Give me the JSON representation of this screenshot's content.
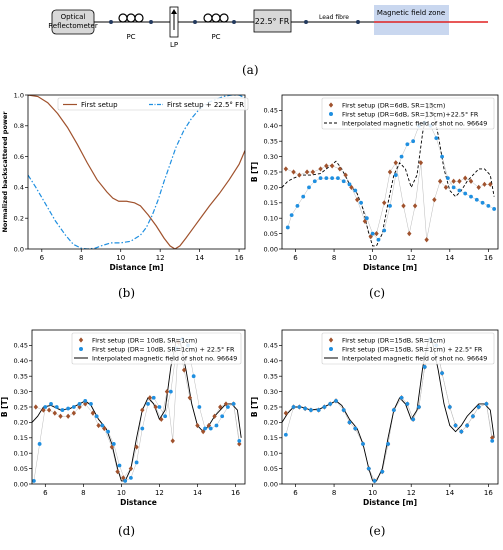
{
  "diagram": {
    "reflectometer": "Optical Reflectometer",
    "pc1": "PC",
    "lp": "LP",
    "pc2": "PC",
    "fr": "22.5° FR",
    "lead": "Lead fibre",
    "zone": "Magnetic field zone",
    "label": "(a)"
  },
  "colors": {
    "brown": "#a0522d",
    "blue": "#1f8fe0",
    "black": "#000000",
    "zone": "#c9d7ef"
  },
  "chart_data": [
    {
      "id": "b",
      "type": "line",
      "label": "(b)",
      "xlabel": "Distance [m]",
      "ylabel": "Normalized backscattered power",
      "xlim": [
        5.3,
        16.3
      ],
      "ylim": [
        0,
        1.0
      ],
      "xticks": [
        6,
        8,
        10,
        12,
        14,
        16
      ],
      "yticks": [
        0,
        0.2,
        0.4,
        0.6,
        0.8,
        1.0
      ],
      "ytick_labels": [
        "0.0",
        "0.2",
        "0.4",
        "0.6",
        "0.8",
        "1.0"
      ],
      "legend_position": "top",
      "series": [
        {
          "name": "First setup",
          "style": "solid",
          "color": "#a0522d",
          "x": [
            5.3,
            5.8,
            6.3,
            6.8,
            7.3,
            7.8,
            8.3,
            8.8,
            9.3,
            9.6,
            9.9,
            10.3,
            10.7,
            11.0,
            11.4,
            11.8,
            12.2,
            12.5,
            12.75,
            13.0,
            13.3,
            13.7,
            14.1,
            14.5,
            15.0,
            15.5,
            16.0,
            16.3
          ],
          "y": [
            1.0,
            0.99,
            0.95,
            0.88,
            0.79,
            0.68,
            0.56,
            0.45,
            0.37,
            0.33,
            0.31,
            0.31,
            0.3,
            0.28,
            0.22,
            0.15,
            0.07,
            0.02,
            0.0,
            0.02,
            0.07,
            0.14,
            0.21,
            0.28,
            0.36,
            0.45,
            0.55,
            0.64
          ]
        },
        {
          "name": "First setup + 22.5° FR",
          "style": "dashdot",
          "color": "#1f8fe0",
          "x": [
            5.3,
            5.7,
            6.2,
            6.7,
            7.2,
            7.6,
            8.0,
            8.3,
            8.7,
            9.0,
            9.5,
            10.0,
            10.5,
            11.0,
            11.3,
            11.6,
            11.9,
            12.2,
            12.5,
            12.8,
            13.2,
            13.6,
            14.0,
            14.4,
            14.8,
            15.2,
            15.6,
            16.0,
            16.3
          ],
          "y": [
            0.48,
            0.4,
            0.29,
            0.18,
            0.09,
            0.03,
            0.005,
            0.0,
            0.005,
            0.02,
            0.04,
            0.04,
            0.05,
            0.09,
            0.14,
            0.22,
            0.32,
            0.44,
            0.55,
            0.66,
            0.77,
            0.85,
            0.91,
            0.95,
            0.97,
            0.99,
            1.0,
            1.0,
            0.98
          ]
        }
      ]
    },
    {
      "id": "c",
      "type": "scatter",
      "label": "(c)",
      "xlabel": "Distance [m]",
      "ylabel": "B [T]",
      "xlim": [
        5.3,
        16.5
      ],
      "ylim": [
        0,
        0.5
      ],
      "xticks": [
        6,
        8,
        10,
        12,
        14,
        16
      ],
      "yticks": [
        0,
        0.05,
        0.1,
        0.15,
        0.2,
        0.25,
        0.3,
        0.35,
        0.4,
        0.45
      ],
      "ytick_labels": [
        "0.00",
        "0.05",
        "0.10",
        "0.15",
        "0.20",
        "0.25",
        "0.30",
        "0.35",
        "0.40",
        "0.45"
      ],
      "legend_position": "top",
      "series": [
        {
          "name": "First setup (DR=6dB, SR=13cm)",
          "marker": "diamond",
          "color": "#a0522d",
          "x": [
            5.5,
            5.9,
            6.2,
            6.6,
            6.9,
            7.3,
            7.6,
            7.9,
            8.3,
            8.6,
            8.9,
            9.2,
            9.6,
            9.9,
            10.2,
            10.6,
            10.9,
            11.2,
            11.6,
            11.9,
            12.2,
            12.5,
            12.8,
            13.2,
            13.5,
            13.8,
            14.2,
            14.5,
            14.8,
            15.1,
            15.5,
            15.8,
            16.1
          ],
          "y": [
            0.26,
            0.25,
            0.24,
            0.25,
            0.25,
            0.26,
            0.27,
            0.27,
            0.26,
            0.24,
            0.2,
            0.16,
            0.09,
            0.04,
            0.05,
            0.15,
            0.25,
            0.28,
            0.14,
            0.05,
            0.14,
            0.28,
            0.03,
            0.16,
            0.22,
            0.2,
            0.22,
            0.22,
            0.23,
            0.22,
            0.2,
            0.21,
            0.21
          ]
        },
        {
          "name": "First setup (DR=6dB, SR=13cm)+22.5° FR",
          "marker": "circle",
          "color": "#1f8fe0",
          "x": [
            5.6,
            5.8,
            6.1,
            6.4,
            6.7,
            7.0,
            7.3,
            7.6,
            7.9,
            8.2,
            8.5,
            8.8,
            9.1,
            9.4,
            9.7,
            10.0,
            10.3,
            10.6,
            10.9,
            11.2,
            11.5,
            11.8,
            12.1,
            12.4,
            12.7,
            13.0,
            13.3,
            13.6,
            13.9,
            14.2,
            14.5,
            14.8,
            15.1,
            15.4,
            15.7,
            16.0,
            16.3
          ],
          "y": [
            0.07,
            0.11,
            0.14,
            0.17,
            0.2,
            0.22,
            0.23,
            0.23,
            0.23,
            0.23,
            0.22,
            0.21,
            0.19,
            0.15,
            0.1,
            0.05,
            0.03,
            0.06,
            0.14,
            0.24,
            0.3,
            0.34,
            0.35,
            0.4,
            0.41,
            0.4,
            0.36,
            0.3,
            0.23,
            0.2,
            0.19,
            0.18,
            0.17,
            0.16,
            0.15,
            0.14,
            0.13
          ]
        },
        {
          "name": "Interpolated magnetic field of shot no. 96649",
          "marker": "dashed-line",
          "color": "#000000",
          "x": [
            5.3,
            5.6,
            5.9,
            6.3,
            6.8,
            7.3,
            7.8,
            8.1,
            8.4,
            8.8,
            9.2,
            9.5,
            9.8,
            10.0,
            10.2,
            10.5,
            10.8,
            11.1,
            11.4,
            11.7,
            12.0,
            12.3,
            12.6,
            12.9,
            13.1,
            13.4,
            13.7,
            14.0,
            14.3,
            14.6,
            14.9,
            15.2,
            15.5,
            15.8,
            16.1,
            16.3
          ],
          "y": [
            0.2,
            0.22,
            0.23,
            0.24,
            0.24,
            0.245,
            0.27,
            0.285,
            0.26,
            0.21,
            0.18,
            0.13,
            0.05,
            0.01,
            0.01,
            0.05,
            0.15,
            0.24,
            0.28,
            0.26,
            0.2,
            0.24,
            0.38,
            0.47,
            0.46,
            0.37,
            0.26,
            0.19,
            0.17,
            0.19,
            0.22,
            0.24,
            0.26,
            0.26,
            0.24,
            0.17
          ]
        }
      ]
    },
    {
      "id": "d",
      "type": "scatter",
      "label": "(d)",
      "xlabel": "Distance",
      "ylabel": "B [T]",
      "xlim": [
        5.3,
        16.5
      ],
      "ylim": [
        0,
        0.5
      ],
      "xticks": [
        6,
        8,
        10,
        12,
        14,
        16
      ],
      "yticks": [
        0,
        0.05,
        0.1,
        0.15,
        0.2,
        0.25,
        0.3,
        0.35,
        0.4,
        0.45
      ],
      "ytick_labels": [
        "0.00",
        "0.05",
        "0.10",
        "0.15",
        "0.20",
        "0.25",
        "0.30",
        "0.35",
        "0.40",
        "0.45"
      ],
      "legend_position": "top",
      "series": [
        {
          "name": "First setup (DR= 10dB, SR=1cm)",
          "marker": "diamond",
          "color": "#a0522d",
          "x": [
            5.5,
            5.9,
            6.2,
            6.5,
            6.8,
            7.2,
            7.5,
            7.8,
            8.1,
            8.5,
            8.8,
            9.1,
            9.5,
            9.8,
            10.1,
            10.5,
            10.8,
            11.1,
            11.5,
            11.8,
            12.1,
            12.4,
            12.7,
            13.0,
            13.3,
            13.6,
            14.0,
            14.3,
            14.6,
            14.9,
            15.2,
            15.5,
            15.9,
            16.2
          ],
          "y": [
            0.25,
            0.24,
            0.24,
            0.23,
            0.22,
            0.22,
            0.23,
            0.25,
            0.26,
            0.23,
            0.19,
            0.18,
            0.12,
            0.04,
            0.02,
            0.05,
            0.12,
            0.24,
            0.28,
            0.25,
            0.21,
            0.3,
            0.14,
            0.46,
            0.37,
            0.28,
            0.19,
            0.17,
            0.19,
            0.22,
            0.25,
            0.26,
            0.26,
            0.13
          ]
        },
        {
          "name": "First setup (DR= 10dB, SR=1cm) + 22.5° FR",
          "marker": "circle",
          "color": "#1f8fe0",
          "x": [
            5.4,
            5.7,
            6.0,
            6.3,
            6.6,
            6.9,
            7.2,
            7.5,
            7.8,
            8.1,
            8.4,
            8.7,
            9.0,
            9.3,
            9.6,
            9.9,
            10.2,
            10.5,
            10.8,
            11.1,
            11.4,
            11.7,
            12.0,
            12.3,
            12.6,
            12.9,
            13.2,
            13.5,
            13.8,
            14.1,
            14.4,
            14.7,
            15.0,
            15.3,
            15.6,
            15.9,
            16.2
          ],
          "y": [
            0.01,
            0.13,
            0.25,
            0.26,
            0.25,
            0.24,
            0.245,
            0.25,
            0.26,
            0.27,
            0.26,
            0.22,
            0.19,
            0.17,
            0.13,
            0.06,
            0.01,
            0.02,
            0.07,
            0.18,
            0.26,
            0.28,
            0.25,
            0.22,
            0.3,
            0.44,
            0.47,
            0.45,
            0.35,
            0.25,
            0.18,
            0.18,
            0.19,
            0.22,
            0.25,
            0.26,
            0.14
          ]
        },
        {
          "name": "Interpolated magnetic field of shot no. 96649",
          "marker": "solid-line",
          "color": "#000000",
          "x": [
            5.3,
            5.6,
            5.9,
            6.3,
            6.8,
            7.3,
            7.8,
            8.1,
            8.4,
            8.8,
            9.2,
            9.5,
            9.8,
            10.0,
            10.2,
            10.5,
            10.8,
            11.1,
            11.4,
            11.7,
            12.0,
            12.3,
            12.6,
            12.9,
            13.1,
            13.4,
            13.7,
            14.0,
            14.3,
            14.6,
            14.9,
            15.2,
            15.5,
            15.8,
            16.1,
            16.3
          ],
          "y": [
            0.2,
            0.22,
            0.25,
            0.255,
            0.24,
            0.245,
            0.26,
            0.27,
            0.255,
            0.21,
            0.18,
            0.13,
            0.05,
            0.01,
            0.01,
            0.05,
            0.15,
            0.24,
            0.28,
            0.26,
            0.21,
            0.24,
            0.38,
            0.47,
            0.46,
            0.37,
            0.26,
            0.19,
            0.17,
            0.19,
            0.22,
            0.24,
            0.26,
            0.26,
            0.24,
            0.15
          ]
        }
      ]
    },
    {
      "id": "e",
      "type": "scatter",
      "label": "(e)",
      "xlabel": "Distance [m]",
      "ylabel": "B [T]",
      "xlim": [
        5.3,
        16.5
      ],
      "ylim": [
        0,
        0.5
      ],
      "xticks": [
        6,
        8,
        10,
        12,
        14,
        16
      ],
      "yticks": [
        0,
        0.05,
        0.1,
        0.15,
        0.2,
        0.25,
        0.3,
        0.35,
        0.4,
        0.45
      ],
      "ytick_labels": [
        "0.00",
        "0.05",
        "0.10",
        "0.15",
        "0.20",
        "0.25",
        "0.30",
        "0.35",
        "0.40",
        "0.45"
      ],
      "legend_position": "top",
      "series": [
        {
          "name": "First setup (DR=15dB, SR=1cm)",
          "marker": "diamond",
          "color": "#a0522d",
          "x": [
            5.5,
            5.9,
            6.2,
            6.5,
            6.8,
            7.2,
            7.5,
            7.8,
            8.1,
            8.5,
            8.8,
            9.1,
            9.5,
            9.8,
            10.1,
            10.5,
            10.8,
            11.1,
            11.5,
            11.8,
            12.1,
            12.4,
            12.7,
            13.0,
            13.3,
            13.6,
            14.0,
            14.3,
            14.6,
            14.9,
            15.2,
            15.5,
            15.9,
            16.2
          ],
          "y": [
            0.23,
            0.25,
            0.25,
            0.245,
            0.24,
            0.24,
            0.25,
            0.26,
            0.27,
            0.24,
            0.2,
            0.18,
            0.13,
            0.05,
            0.01,
            0.04,
            0.13,
            0.24,
            0.28,
            0.26,
            0.21,
            0.25,
            0.38,
            0.47,
            0.45,
            0.36,
            0.25,
            0.19,
            0.17,
            0.19,
            0.22,
            0.25,
            0.26,
            0.15
          ]
        },
        {
          "name": "First setup (DR=15dB, SR=1cm) + 22.5° FR",
          "marker": "circle",
          "color": "#1f8fe0",
          "x": [
            5.5,
            5.9,
            6.2,
            6.5,
            6.8,
            7.2,
            7.5,
            7.8,
            8.1,
            8.5,
            8.8,
            9.1,
            9.5,
            9.8,
            10.1,
            10.5,
            10.8,
            11.1,
            11.5,
            11.8,
            12.1,
            12.4,
            12.7,
            13.0,
            13.3,
            13.6,
            14.0,
            14.3,
            14.6,
            14.9,
            15.2,
            15.5,
            15.9,
            16.2
          ],
          "y": [
            0.16,
            0.25,
            0.25,
            0.245,
            0.24,
            0.24,
            0.25,
            0.26,
            0.27,
            0.24,
            0.2,
            0.18,
            0.13,
            0.05,
            0.01,
            0.04,
            0.13,
            0.24,
            0.28,
            0.26,
            0.21,
            0.25,
            0.38,
            0.47,
            0.45,
            0.36,
            0.25,
            0.19,
            0.17,
            0.19,
            0.22,
            0.25,
            0.26,
            0.14
          ]
        },
        {
          "name": "Interpolated magnetic field of shot no. 96649",
          "marker": "solid-line",
          "color": "#000000",
          "x": [
            5.3,
            5.6,
            5.9,
            6.3,
            6.8,
            7.3,
            7.8,
            8.1,
            8.4,
            8.8,
            9.2,
            9.5,
            9.8,
            10.0,
            10.2,
            10.5,
            10.8,
            11.1,
            11.4,
            11.7,
            12.0,
            12.3,
            12.6,
            12.9,
            13.1,
            13.4,
            13.7,
            14.0,
            14.3,
            14.6,
            14.9,
            15.2,
            15.5,
            15.8,
            16.1,
            16.3
          ],
          "y": [
            0.2,
            0.23,
            0.25,
            0.25,
            0.24,
            0.245,
            0.26,
            0.27,
            0.255,
            0.21,
            0.18,
            0.13,
            0.05,
            0.01,
            0.01,
            0.05,
            0.15,
            0.24,
            0.28,
            0.26,
            0.21,
            0.24,
            0.38,
            0.47,
            0.46,
            0.37,
            0.26,
            0.19,
            0.17,
            0.19,
            0.22,
            0.24,
            0.26,
            0.26,
            0.24,
            0.15
          ]
        }
      ]
    }
  ]
}
